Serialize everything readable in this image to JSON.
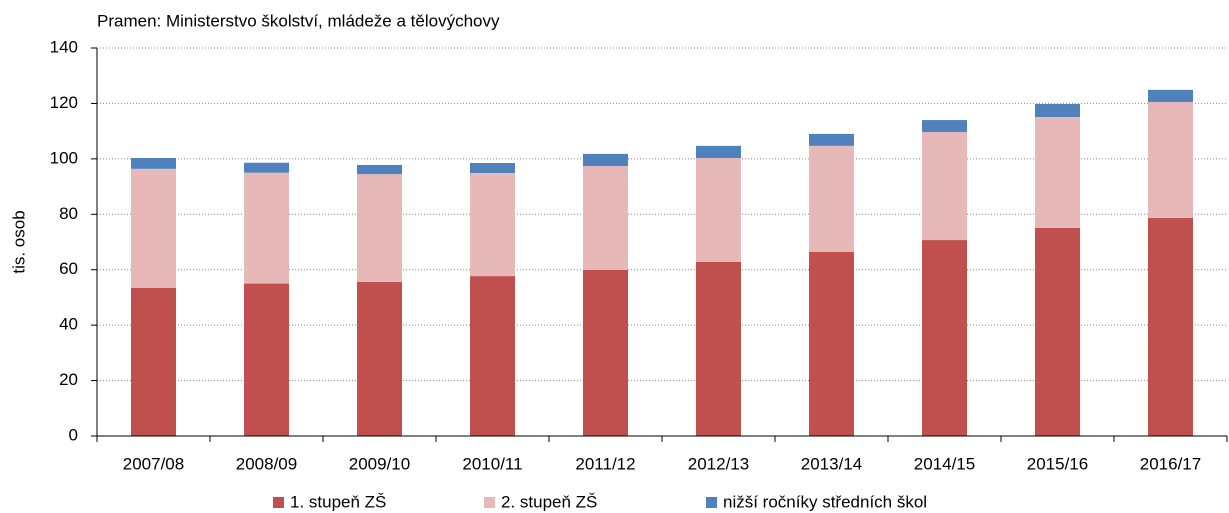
{
  "chart_data": {
    "type": "stacked_bar",
    "subtitle": "Pramen: Ministerstvo školství, mládeže a tělovýchovy",
    "y_label": "tis. osob",
    "categories": [
      "2007/08",
      "2008/09",
      "2009/10",
      "2010/11",
      "2011/12",
      "2012/13",
      "2013/14",
      "2014/15",
      "2015/16",
      "2016/17"
    ],
    "series": [
      {
        "name": "1. stupeň ZŠ",
        "color": "#c0504d",
        "values": [
          53.4,
          55.0,
          55.6,
          57.7,
          59.9,
          62.8,
          66.4,
          70.7,
          75.1,
          78.7
        ]
      },
      {
        "name": "2. stupeň ZŠ",
        "color": "#e6b9b8",
        "values": [
          43.0,
          40.0,
          38.9,
          37.2,
          37.5,
          37.5,
          38.3,
          39.0,
          40.0,
          41.8
        ]
      },
      {
        "name": "nižší ročníky středních škol",
        "color": "#4f81bd",
        "values": [
          3.9,
          3.6,
          3.3,
          3.6,
          4.4,
          4.4,
          4.3,
          4.3,
          4.7,
          4.4
        ]
      }
    ],
    "ylim": [
      0,
      140
    ],
    "yticks": [
      0,
      20,
      40,
      60,
      80,
      100,
      120,
      140
    ],
    "grid": true,
    "legend": "bottom"
  }
}
